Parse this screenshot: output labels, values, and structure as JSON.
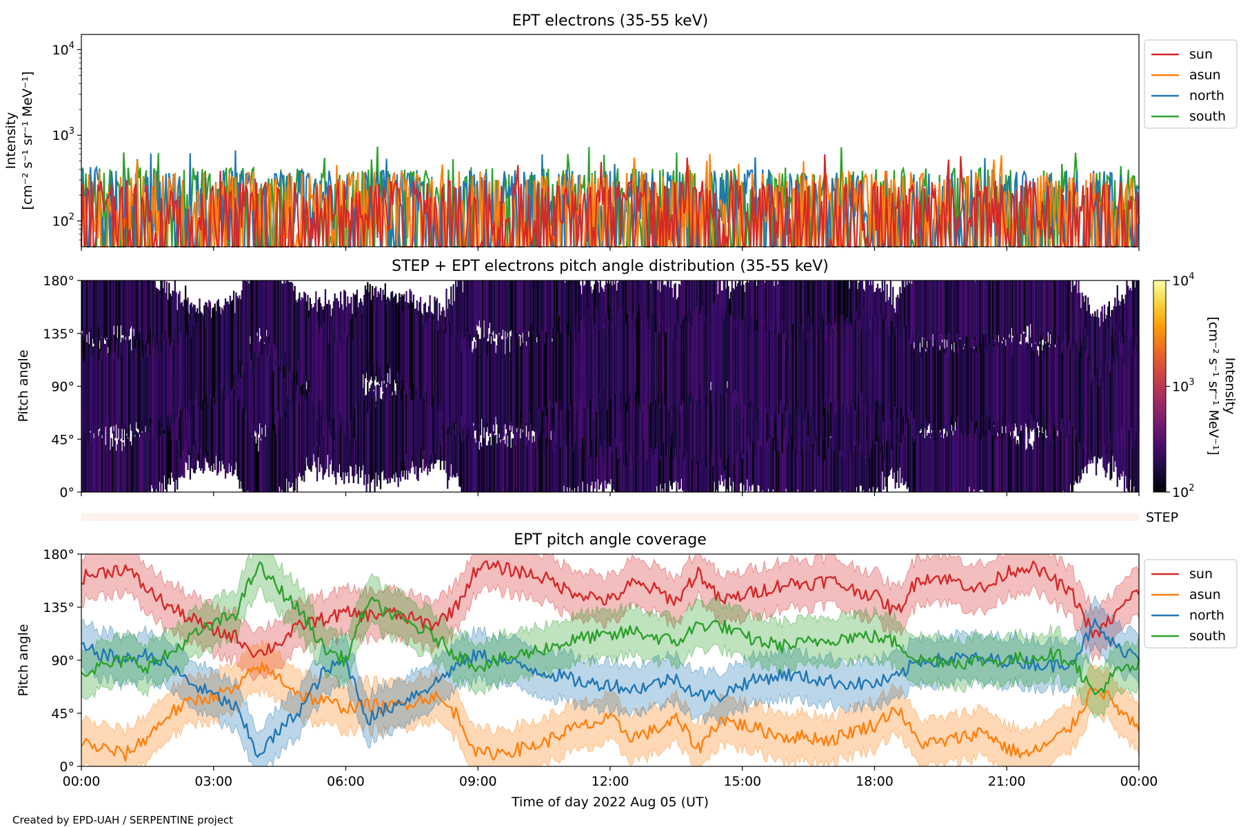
{
  "colors": {
    "sun": "#d62728",
    "asun": "#ff7f0e",
    "north": "#1f77b4",
    "south": "#2ca02c",
    "step_bar": "#fff1ec"
  },
  "credit": "Created by EPD-UAH / SERPENTINE project",
  "chart_data": [
    {
      "type": "line",
      "title": "EPT electrons (35-55 keV)",
      "xlabel": "",
      "ylabel_line1": "Intensity",
      "ylabel_line2": "[cm⁻² s⁻¹ sr⁻¹ MeV⁻¹]",
      "y_scale": "log",
      "ylim": [
        50,
        15000
      ],
      "xlim_hours": [
        0,
        24
      ],
      "y_ticks": [
        {
          "value": 100,
          "label": "10",
          "exp": "2"
        },
        {
          "value": 1000,
          "label": "10",
          "exp": "3"
        },
        {
          "value": 10000,
          "label": "10",
          "exp": "4"
        }
      ],
      "legend_position": "outside-right",
      "series": [
        {
          "name": "sun",
          "color": "#d62728",
          "typical_range": [
            50,
            300
          ],
          "peak": 600
        },
        {
          "name": "asun",
          "color": "#ff7f0e",
          "typical_range": [
            60,
            380
          ],
          "peak": 650
        },
        {
          "name": "north",
          "color": "#1f77b4",
          "typical_range": [
            60,
            400
          ],
          "peak": 700
        },
        {
          "name": "south",
          "color": "#2ca02c",
          "typical_range": [
            60,
            420
          ],
          "peak": 750
        }
      ]
    },
    {
      "type": "heatmap",
      "title": "STEP + EPT electrons pitch angle distribution (35-55 keV)",
      "ylabel": "Pitch angle",
      "ylim": [
        0,
        180
      ],
      "y_ticks": [
        "0°",
        "45°",
        "90°",
        "135°",
        "180°"
      ],
      "colorbar": {
        "label_line1": "Intensity",
        "label_line2": "[cm⁻² s⁻¹ sr⁻¹ MeV⁻¹]",
        "scale": "log",
        "range": [
          100,
          10000
        ],
        "ticks": [
          {
            "label": "10",
            "exp": "2"
          },
          {
            "label": "10",
            "exp": "3"
          },
          {
            "label": "10",
            "exp": "4"
          }
        ],
        "colormap": [
          "#000004",
          "#1b0c41",
          "#4a0c6b",
          "#781c6d",
          "#a52c60",
          "#cf4446",
          "#ed6925",
          "#fb9b06",
          "#f7d13d",
          "#fcffa4"
        ]
      },
      "typical_intensity": 200
    },
    {
      "type": "bar",
      "label": "STEP"
    },
    {
      "type": "line",
      "title": "EPT pitch angle coverage",
      "xlabel": "Time of day 2022 Aug 05 (UT)",
      "ylabel": "Pitch angle",
      "ylim": [
        0,
        180
      ],
      "y_ticks": [
        "0°",
        "45°",
        "90°",
        "135°",
        "180°"
      ],
      "x_ticks": [
        "00:00",
        "03:00",
        "06:00",
        "09:00",
        "12:00",
        "15:00",
        "18:00",
        "21:00",
        "00:00"
      ],
      "band_halfwidth_deg": 20,
      "legend_position": "outside-right",
      "x_hours": [
        0,
        0.5,
        1,
        1.5,
        2,
        2.5,
        3,
        3.5,
        4,
        4.5,
        5,
        5.5,
        6,
        6.5,
        7,
        7.5,
        8,
        8.5,
        9,
        9.5,
        10,
        10.5,
        11,
        11.5,
        12,
        12.5,
        13,
        13.5,
        14,
        14.5,
        15,
        15.5,
        16,
        16.5,
        17,
        17.5,
        18,
        18.5,
        19,
        19.5,
        20,
        20.5,
        21,
        21.5,
        22,
        22.5,
        23,
        23.5,
        24
      ],
      "series": [
        {
          "name": "sun",
          "color": "#d62728",
          "values": [
            160,
            165,
            168,
            150,
            135,
            125,
            115,
            110,
            95,
            105,
            120,
            125,
            130,
            128,
            130,
            125,
            120,
            135,
            170,
            168,
            165,
            160,
            150,
            145,
            140,
            155,
            150,
            140,
            165,
            140,
            145,
            150,
            155,
            155,
            158,
            150,
            145,
            130,
            160,
            160,
            155,
            150,
            165,
            170,
            160,
            145,
            110,
            130,
            150
          ]
        },
        {
          "name": "asun",
          "color": "#ff7f0e",
          "values": [
            20,
            15,
            10,
            25,
            45,
            55,
            60,
            65,
            85,
            75,
            60,
            55,
            50,
            52,
            50,
            55,
            60,
            45,
            10,
            12,
            15,
            20,
            30,
            35,
            40,
            25,
            30,
            40,
            15,
            40,
            35,
            30,
            25,
            25,
            22,
            30,
            35,
            50,
            20,
            20,
            25,
            30,
            15,
            10,
            20,
            35,
            70,
            50,
            30
          ]
        },
        {
          "name": "north",
          "color": "#1f77b4",
          "values": [
            100,
            95,
            90,
            95,
            85,
            70,
            60,
            50,
            10,
            30,
            50,
            80,
            90,
            40,
            50,
            60,
            70,
            85,
            95,
            90,
            85,
            80,
            75,
            70,
            70,
            65,
            70,
            75,
            60,
            60,
            70,
            75,
            78,
            75,
            72,
            70,
            70,
            75,
            90,
            90,
            92,
            90,
            90,
            88,
            85,
            90,
            120,
            100,
            95
          ]
        },
        {
          "name": "south",
          "color": "#2ca02c",
          "values": [
            80,
            85,
            90,
            85,
            95,
            110,
            120,
            130,
            170,
            150,
            130,
            100,
            90,
            140,
            130,
            120,
            110,
            95,
            85,
            90,
            95,
            100,
            105,
            110,
            110,
            115,
            110,
            105,
            120,
            120,
            110,
            105,
            102,
            105,
            108,
            110,
            110,
            105,
            90,
            90,
            88,
            90,
            90,
            92,
            95,
            90,
            60,
            80,
            85
          ]
        }
      ]
    }
  ]
}
